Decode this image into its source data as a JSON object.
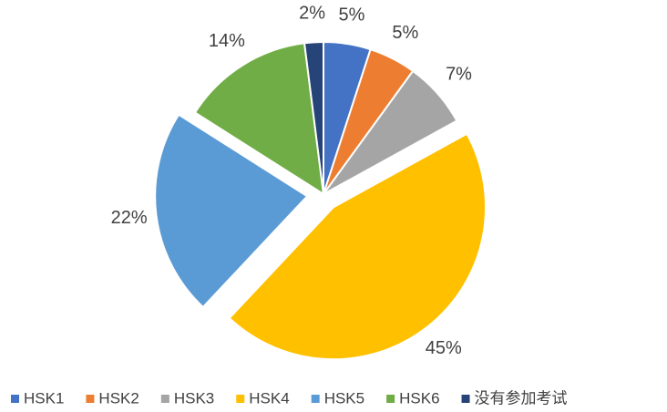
{
  "chart_data": {
    "type": "pie",
    "categories": [
      "HSK1",
      "HSK2",
      "HSK3",
      "HSK4",
      "HSK5",
      "HSK6",
      "没有参加考试"
    ],
    "values": [
      5,
      5,
      7,
      45,
      22,
      14,
      2
    ],
    "value_labels": [
      "5%",
      "5%",
      "7%",
      "45%",
      "22%",
      "14%",
      "2%"
    ],
    "colors": [
      "#4472c4",
      "#ed7d31",
      "#a5a5a5",
      "#ffc000",
      "#5b9bd5",
      "#70ad47",
      "#264478"
    ],
    "explode": [
      false,
      false,
      false,
      true,
      true,
      false,
      false
    ],
    "legend": "bottom"
  }
}
